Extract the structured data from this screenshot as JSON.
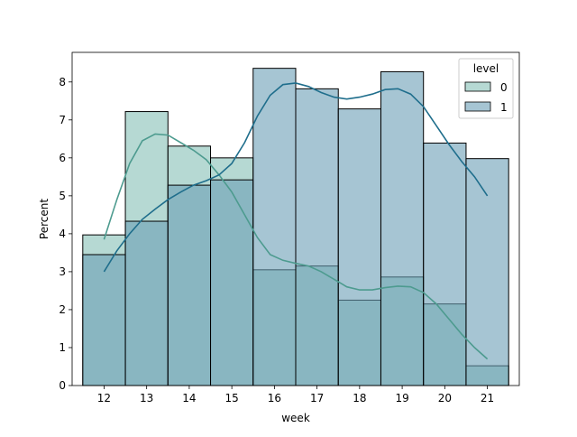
{
  "chart_data": {
    "type": "bar",
    "title": "",
    "xlabel": "week",
    "ylabel": "Percent",
    "x": [
      12,
      13,
      14,
      15,
      16,
      17,
      18,
      19,
      20,
      21
    ],
    "xlim": [
      11.25,
      21.75
    ],
    "ylim": [
      0,
      8.78
    ],
    "yticks": [
      0,
      1,
      2,
      3,
      4,
      5,
      6,
      7,
      8
    ],
    "bin_width": 1,
    "legend": {
      "title": "level",
      "placement": "top-right"
    },
    "grid": false,
    "series": [
      {
        "name": "0",
        "values": [
          3.97,
          7.22,
          6.31,
          6.0,
          3.05,
          3.15,
          2.25,
          2.86,
          2.15,
          0.52
        ],
        "kde": [
          [
            12,
            3.85
          ],
          [
            12.3,
            4.9
          ],
          [
            12.6,
            5.85
          ],
          [
            12.9,
            6.45
          ],
          [
            13.2,
            6.63
          ],
          [
            13.5,
            6.6
          ],
          [
            13.8,
            6.4
          ],
          [
            14.1,
            6.2
          ],
          [
            14.4,
            5.95
          ],
          [
            14.7,
            5.55
          ],
          [
            15.0,
            5.1
          ],
          [
            15.3,
            4.5
          ],
          [
            15.6,
            3.9
          ],
          [
            15.9,
            3.45
          ],
          [
            16.2,
            3.3
          ],
          [
            16.5,
            3.22
          ],
          [
            16.8,
            3.15
          ],
          [
            17.1,
            3.0
          ],
          [
            17.4,
            2.8
          ],
          [
            17.7,
            2.6
          ],
          [
            18.0,
            2.52
          ],
          [
            18.3,
            2.52
          ],
          [
            18.6,
            2.58
          ],
          [
            18.9,
            2.62
          ],
          [
            19.2,
            2.6
          ],
          [
            19.5,
            2.45
          ],
          [
            19.8,
            2.15
          ],
          [
            20.1,
            1.75
          ],
          [
            20.4,
            1.35
          ],
          [
            20.7,
            1.0
          ],
          [
            21.0,
            0.7
          ]
        ]
      },
      {
        "name": "1",
        "values": [
          3.45,
          4.33,
          5.28,
          5.42,
          8.36,
          7.82,
          7.29,
          8.27,
          6.39,
          5.98
        ],
        "kde": [
          [
            12,
            3.0
          ],
          [
            12.3,
            3.55
          ],
          [
            12.6,
            4.0
          ],
          [
            12.9,
            4.38
          ],
          [
            13.2,
            4.65
          ],
          [
            13.5,
            4.9
          ],
          [
            13.8,
            5.1
          ],
          [
            14.1,
            5.28
          ],
          [
            14.4,
            5.4
          ],
          [
            14.7,
            5.55
          ],
          [
            15.0,
            5.85
          ],
          [
            15.3,
            6.4
          ],
          [
            15.6,
            7.1
          ],
          [
            15.9,
            7.65
          ],
          [
            16.2,
            7.93
          ],
          [
            16.5,
            7.97
          ],
          [
            16.8,
            7.88
          ],
          [
            17.1,
            7.72
          ],
          [
            17.4,
            7.6
          ],
          [
            17.7,
            7.55
          ],
          [
            18.0,
            7.6
          ],
          [
            18.3,
            7.68
          ],
          [
            18.6,
            7.8
          ],
          [
            18.9,
            7.82
          ],
          [
            19.2,
            7.68
          ],
          [
            19.5,
            7.35
          ],
          [
            19.8,
            6.85
          ],
          [
            20.1,
            6.35
          ],
          [
            20.4,
            5.9
          ],
          [
            20.7,
            5.5
          ],
          [
            21.0,
            5.0
          ]
        ]
      }
    ],
    "colors": {
      "series0_fill": "#86bfb5",
      "series0_line": "#4d9b8f",
      "series1_fill": "#6a9fb6",
      "series1_line": "#1f6e8c",
      "overlap_fill": "#7fb0b2"
    }
  }
}
